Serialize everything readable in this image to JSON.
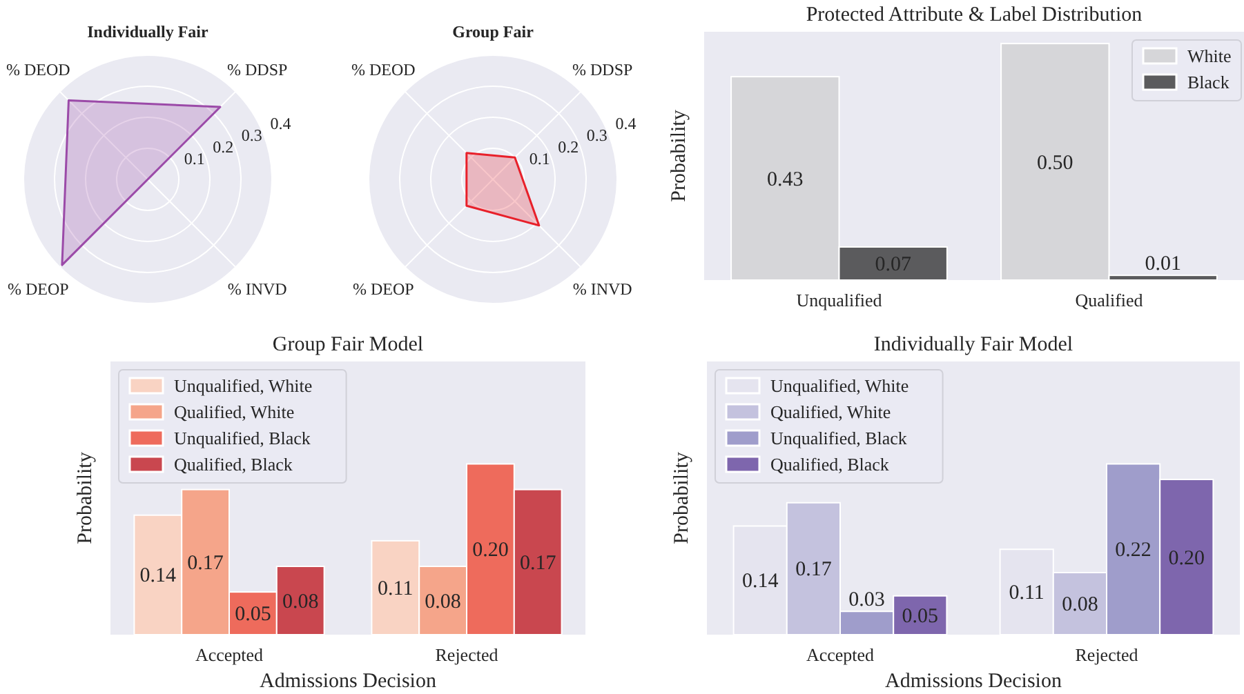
{
  "chart_data": [
    {
      "type": "radar",
      "title": "Individually Fair",
      "categories": [
        "% DDSP",
        "% INVD",
        "% DEOP",
        "% DEOD"
      ],
      "ylim": [
        0,
        0.4
      ],
      "yticks": [
        0.1,
        0.2,
        0.3,
        0.4
      ],
      "grid": true,
      "series": [
        {
          "color": "#9b4aa8",
          "values": [
            0.33,
            0,
            0.39,
            0.36
          ]
        }
      ]
    },
    {
      "type": "radar",
      "title": "Group Fair",
      "categories": [
        "% DDSP",
        "% INVD",
        "% DEOP",
        "% DEOD"
      ],
      "ylim": [
        0,
        0.4
      ],
      "yticks": [
        0.1,
        0.2,
        0.3,
        0.4
      ],
      "grid": true,
      "series": [
        {
          "color": "#e8202a",
          "values": [
            0.1,
            0.21,
            0.12,
            0.12
          ]
        }
      ]
    },
    {
      "type": "bar",
      "title": "Protected Attribute & Label Distribution",
      "ylabel": "Probability",
      "categories": [
        "Unqualified",
        "Qualified"
      ],
      "legend": "top right",
      "series": [
        {
          "name": "White",
          "color": "#d6d6d9",
          "values": [
            0.43,
            0.5
          ],
          "value_labels": [
            "0.43",
            "0.50"
          ]
        },
        {
          "name": "Black",
          "color": "#5b5b5d",
          "values": [
            0.07,
            0.01
          ],
          "value_labels": [
            "0.07",
            "0.01"
          ]
        }
      ]
    },
    {
      "type": "bar",
      "title": "Group Fair Model",
      "xlabel": "Admissions Decision",
      "ylabel": "Probability",
      "categories": [
        "Accepted",
        "Rejected"
      ],
      "legend": "top left",
      "series": [
        {
          "name": "Unqualified, White",
          "color": "#f9d3c3",
          "values": [
            0.14,
            0.11
          ],
          "value_labels": [
            "0.14",
            "0.11"
          ]
        },
        {
          "name": "Qualified, White",
          "color": "#f5a58a",
          "values": [
            0.17,
            0.08
          ],
          "value_labels": [
            "0.17",
            "0.08"
          ]
        },
        {
          "name": "Unqualified, Black",
          "color": "#ee6b5c",
          "values": [
            0.05,
            0.2
          ],
          "value_labels": [
            "0.05",
            "0.20"
          ]
        },
        {
          "name": "Qualified, Black",
          "color": "#c9474f",
          "values": [
            0.08,
            0.17
          ],
          "value_labels": [
            "0.08",
            "0.17"
          ]
        }
      ]
    },
    {
      "type": "bar",
      "title": "Individually Fair Model",
      "xlabel": "Admissions Decision",
      "ylabel": "Probability",
      "categories": [
        "Accepted",
        "Rejected"
      ],
      "legend": "top left",
      "series": [
        {
          "name": "Unqualified, White",
          "color": "#e5e4ef",
          "values": [
            0.14,
            0.11
          ],
          "value_labels": [
            "0.14",
            "0.11"
          ]
        },
        {
          "name": "Qualified, White",
          "color": "#c4c2de",
          "values": [
            0.17,
            0.08
          ],
          "value_labels": [
            "0.17",
            "0.08"
          ]
        },
        {
          "name": "Unqualified, Black",
          "color": "#9f9dcb",
          "values": [
            0.03,
            0.22
          ],
          "value_labels": [
            "0.03",
            "0.22"
          ]
        },
        {
          "name": "Qualified, Black",
          "color": "#7e66ad",
          "values": [
            0.05,
            0.2
          ],
          "value_labels": [
            "0.05",
            "0.20"
          ]
        }
      ]
    }
  ]
}
